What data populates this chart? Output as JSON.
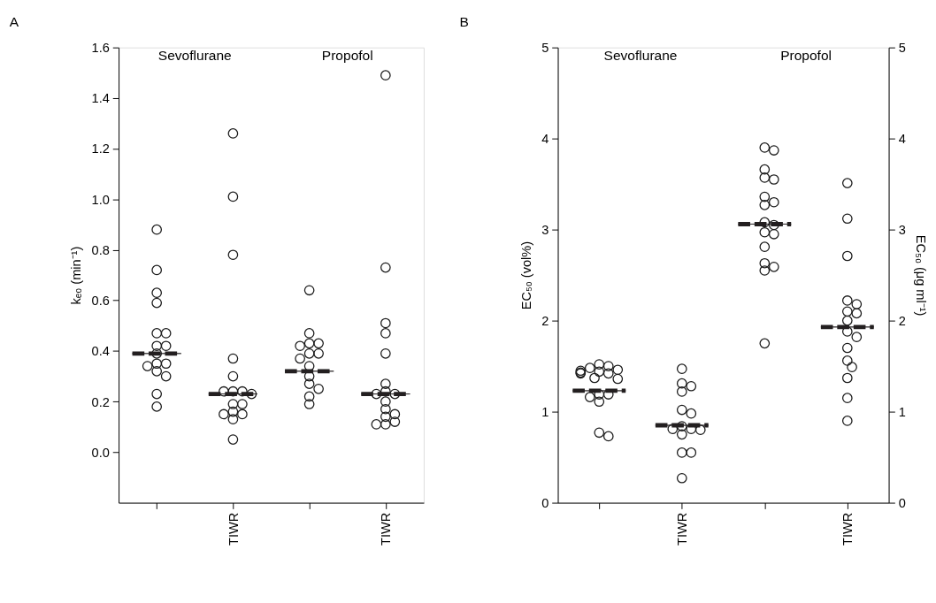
{
  "chart_data": [
    {
      "type": "scatter",
      "title": "A",
      "categories": [
        null,
        "TIWR",
        null,
        "TIWR"
      ],
      "ylabel": "kₑ₀ (min⁻¹)",
      "ylim": [
        -0.2,
        1.6
      ],
      "yticks": [
        {
          "value": 0,
          "label": "0.0"
        },
        0.2,
        0.4,
        0.6,
        0.8,
        {
          "value": 1,
          "label": "1.0"
        },
        1.2,
        1.4,
        1.6
      ],
      "marker": "circle",
      "annotations": [
        "Sevoflurane",
        "Propofol"
      ],
      "series": [
        {
          "color": "#1a1a1a",
          "values": [
            0.88,
            1.26,
            0.64,
            1.49
          ]
        },
        {
          "color": "#1a1a1a",
          "values": [
            0.72,
            1.01,
            0.47,
            0.73
          ]
        },
        {
          "color": "#1a1a1a",
          "values": [
            0.63,
            0.78,
            0.43,
            0.51
          ]
        },
        {
          "color": "#1a1a1a",
          "values": [
            0.59,
            0.37,
            0.43,
            0.47
          ]
        },
        {
          "color": "#1a1a1a",
          "values": [
            0.47,
            0.3,
            0.42,
            0.39
          ]
        },
        {
          "color": "#1a1a1a",
          "values": [
            0.47,
            0.24,
            0.39,
            0.27
          ]
        },
        {
          "color": "#1a1a1a",
          "values": [
            0.42,
            0.24,
            0.39,
            0.24
          ]
        },
        {
          "color": "#1a1a1a",
          "values": [
            0.42,
            0.24,
            0.37,
            0.23
          ]
        },
        {
          "color": "#1a1a1a",
          "values": [
            0.39,
            0.23,
            0.34,
            0.23
          ]
        },
        {
          "color": "#1a1a1a",
          "values": [
            0.35,
            0.19,
            0.3,
            0.2
          ]
        },
        {
          "color": "#1a1a1a",
          "values": [
            0.35,
            0.19,
            0.27,
            0.17
          ]
        },
        {
          "color": "#1a1a1a",
          "values": [
            0.34,
            0.16,
            0.25,
            0.15
          ]
        },
        {
          "color": "#1a1a1a",
          "values": [
            0.32,
            0.15,
            0.22,
            0.14
          ]
        },
        {
          "color": "#1a1a1a",
          "values": [
            0.3,
            0.15,
            0.19,
            0.12
          ]
        },
        {
          "color": "#1a1a1a",
          "values": [
            0.23,
            0.13,
            null,
            0.11
          ]
        },
        {
          "color": "#1a1a1a",
          "values": [
            0.18,
            0.05,
            null,
            0.11
          ]
        },
        {
          "type": "box",
          "line_style": "dashed",
          "color": "#231f20",
          "boxes": [
            {
              "low": 0.39,
              "q1": 0.39,
              "median": 0.39,
              "q3": 0.39,
              "high": 0.39
            },
            {
              "low": 0.23,
              "q1": 0.23,
              "median": 0.23,
              "q3": 0.23,
              "high": 0.23
            },
            {
              "low": 0.32,
              "q1": 0.32,
              "median": 0.32,
              "q3": 0.32,
              "high": 0.32
            },
            {
              "low": 0.23,
              "q1": 0.23,
              "median": 0.23,
              "q3": 0.23,
              "high": 0.23
            }
          ]
        }
      ]
    },
    {
      "type": "scatter",
      "title": "B",
      "categories": [
        null,
        "TIWR",
        null,
        "TIWR"
      ],
      "ylabel": "EC₅₀ (vol%)",
      "y2label": "EC₅₀ (μg ml⁻¹)",
      "ylim": [
        0,
        5
      ],
      "yticks": [
        0,
        1,
        2,
        3,
        4,
        5
      ],
      "y2lim": [
        0,
        5
      ],
      "y2ticks": [
        0,
        1,
        2,
        3,
        4,
        5
      ],
      "marker": "circle",
      "annotations": [
        "Sevoflurane",
        "Propofol"
      ],
      "series": [
        {
          "color": "#1a1a1a",
          "values": [
            1.52,
            1.47,
            null,
            null
          ]
        },
        {
          "color": "#1a1a1a",
          "values": [
            1.5,
            1.31,
            null,
            null
          ]
        },
        {
          "color": "#1a1a1a",
          "values": [
            1.48,
            1.28,
            null,
            null
          ]
        },
        {
          "color": "#1a1a1a",
          "values": [
            1.46,
            1.22,
            null,
            null
          ]
        },
        {
          "color": "#1a1a1a",
          "values": [
            1.45,
            1.02,
            null,
            null
          ]
        },
        {
          "color": "#1a1a1a",
          "values": [
            1.44,
            0.98,
            null,
            null
          ]
        },
        {
          "color": "#1a1a1a",
          "values": [
            1.43,
            0.84,
            null,
            null
          ]
        },
        {
          "color": "#1a1a1a",
          "values": [
            1.42,
            0.81,
            null,
            null
          ]
        },
        {
          "color": "#1a1a1a",
          "values": [
            1.42,
            0.81,
            null,
            null
          ]
        },
        {
          "color": "#1a1a1a",
          "values": [
            1.37,
            0.8,
            null,
            null
          ]
        },
        {
          "color": "#1a1a1a",
          "values": [
            1.36,
            0.75,
            null,
            null
          ]
        },
        {
          "color": "#1a1a1a",
          "values": [
            1.19,
            0.55,
            null,
            null
          ]
        },
        {
          "color": "#1a1a1a",
          "values": [
            1.19,
            0.55,
            null,
            null
          ]
        },
        {
          "color": "#1a1a1a",
          "values": [
            1.16,
            0.27,
            null,
            null
          ]
        },
        {
          "color": "#1a1a1a",
          "values": [
            1.11,
            null,
            null,
            null
          ]
        },
        {
          "color": "#1a1a1a",
          "values": [
            0.77,
            null,
            null,
            null
          ]
        },
        {
          "color": "#1a1a1a",
          "values": [
            0.73,
            null,
            null,
            null
          ]
        },
        {
          "color": "#1a1a1a",
          "axis": "y2",
          "values": [
            null,
            null,
            3.9,
            3.51
          ]
        },
        {
          "color": "#1a1a1a",
          "axis": "y2",
          "values": [
            null,
            null,
            3.87,
            3.12
          ]
        },
        {
          "color": "#1a1a1a",
          "axis": "y2",
          "values": [
            null,
            null,
            3.66,
            2.71
          ]
        },
        {
          "color": "#1a1a1a",
          "axis": "y2",
          "values": [
            null,
            null,
            3.57,
            2.22
          ]
        },
        {
          "color": "#1a1a1a",
          "axis": "y2",
          "values": [
            null,
            null,
            3.55,
            2.18
          ]
        },
        {
          "color": "#1a1a1a",
          "axis": "y2",
          "values": [
            null,
            null,
            3.36,
            2.1
          ]
        },
        {
          "color": "#1a1a1a",
          "axis": "y2",
          "values": [
            null,
            null,
            3.3,
            2.08
          ]
        },
        {
          "color": "#1a1a1a",
          "axis": "y2",
          "values": [
            null,
            null,
            3.27,
            2.0
          ]
        },
        {
          "color": "#1a1a1a",
          "axis": "y2",
          "values": [
            null,
            null,
            3.08,
            1.88
          ]
        },
        {
          "color": "#1a1a1a",
          "axis": "y2",
          "values": [
            null,
            null,
            3.05,
            1.82
          ]
        },
        {
          "color": "#1a1a1a",
          "axis": "y2",
          "values": [
            null,
            null,
            2.97,
            1.7
          ]
        },
        {
          "color": "#1a1a1a",
          "axis": "y2",
          "values": [
            null,
            null,
            2.95,
            1.56
          ]
        },
        {
          "color": "#1a1a1a",
          "axis": "y2",
          "values": [
            null,
            null,
            2.81,
            1.49
          ]
        },
        {
          "color": "#1a1a1a",
          "axis": "y2",
          "values": [
            null,
            null,
            2.63,
            1.37
          ]
        },
        {
          "color": "#1a1a1a",
          "axis": "y2",
          "values": [
            null,
            null,
            2.59,
            1.15
          ]
        },
        {
          "color": "#1a1a1a",
          "axis": "y2",
          "values": [
            null,
            null,
            2.55,
            0.9
          ]
        },
        {
          "color": "#1a1a1a",
          "axis": "y2",
          "values": [
            null,
            null,
            1.75,
            null
          ]
        },
        {
          "type": "box",
          "line_style": "dashed",
          "color": "#231f20",
          "boxes": [
            {
              "low": 1.23,
              "q1": 1.23,
              "median": 1.23,
              "q3": 1.23,
              "high": 1.23
            },
            {
              "low": 0.85,
              "q1": 0.85,
              "median": 0.85,
              "q3": 0.85,
              "high": 0.85
            },
            null,
            null
          ]
        },
        {
          "type": "box",
          "line_style": "dashed",
          "color": "#231f20",
          "axis": "y2",
          "boxes": [
            null,
            null,
            {
              "low": 3.06,
              "q1": 3.06,
              "median": 3.06,
              "q3": 3.06,
              "high": 3.06
            },
            {
              "low": 1.93,
              "q1": 1.93,
              "median": 1.93,
              "q3": 1.93,
              "high": 1.93
            }
          ]
        }
      ]
    }
  ]
}
